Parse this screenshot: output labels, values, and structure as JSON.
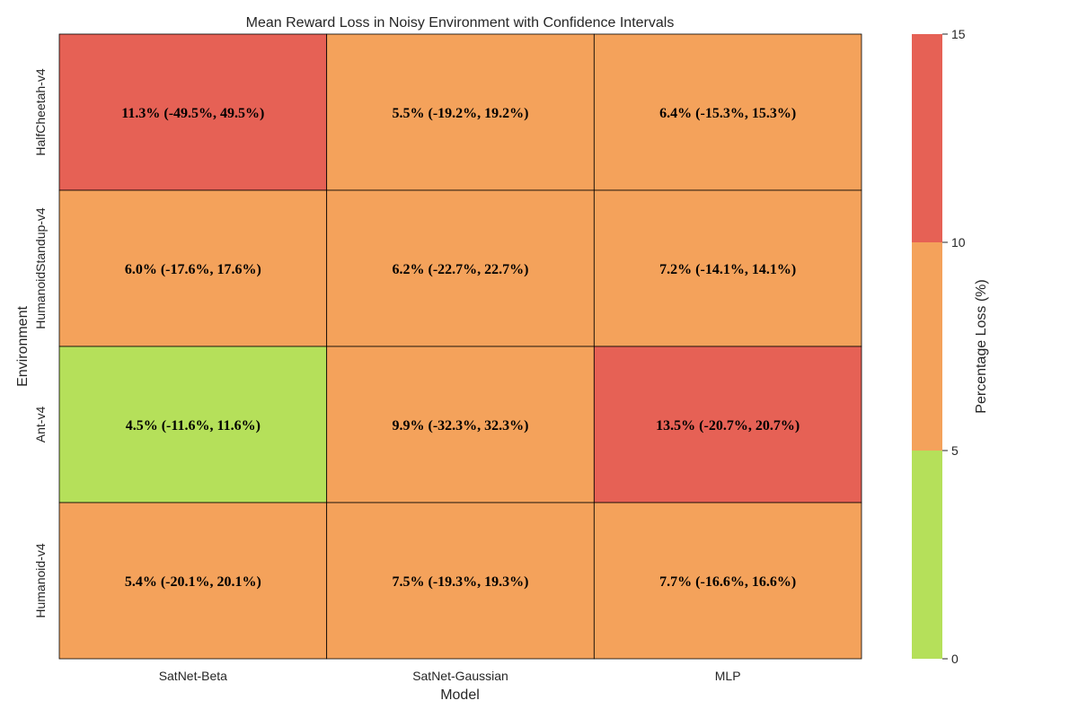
{
  "chart_data": {
    "type": "heatmap",
    "title": "Mean Reward Loss in Noisy Environment with Confidence Intervals",
    "xlabel": "Model",
    "ylabel": "Environment",
    "x_categories": [
      "SatNet-Beta",
      "SatNet-Gaussian",
      "MLP"
    ],
    "y_categories": [
      "HalfCheetah-v4",
      "HumanoidStandup-v4",
      "Ant-v4",
      "Humanoid-v4"
    ],
    "values": [
      [
        11.3,
        5.5,
        6.4
      ],
      [
        6.0,
        6.2,
        7.2
      ],
      [
        4.5,
        9.9,
        13.5
      ],
      [
        5.4,
        7.5,
        7.7
      ]
    ],
    "annotations": [
      [
        "11.3% (-49.5%, 49.5%)",
        "5.5% (-19.2%, 19.2%)",
        "6.4% (-15.3%, 15.3%)"
      ],
      [
        "6.0% (-17.6%, 17.6%)",
        "6.2% (-22.7%, 22.7%)",
        "7.2% (-14.1%, 14.1%)"
      ],
      [
        "4.5% (-11.6%, 11.6%)",
        "9.9% (-32.3%, 32.3%)",
        "13.5% (-20.7%, 20.7%)"
      ],
      [
        "5.4% (-20.1%, 20.1%)",
        "7.5% (-19.3%, 19.3%)",
        "7.7% (-16.6%, 16.6%)"
      ]
    ],
    "colorbar": {
      "label": "Percentage Loss (%)",
      "range": [
        0,
        15
      ],
      "ticks": [
        "0",
        "5",
        "10",
        "15"
      ],
      "bins": [
        {
          "min": 0,
          "max": 5,
          "color": "#b5e05a"
        },
        {
          "min": 5,
          "max": 10,
          "color": "#f4a25b"
        },
        {
          "min": 10,
          "max": 15,
          "color": "#e66155"
        }
      ]
    },
    "grid": true,
    "cell_border_color": "#000000"
  }
}
